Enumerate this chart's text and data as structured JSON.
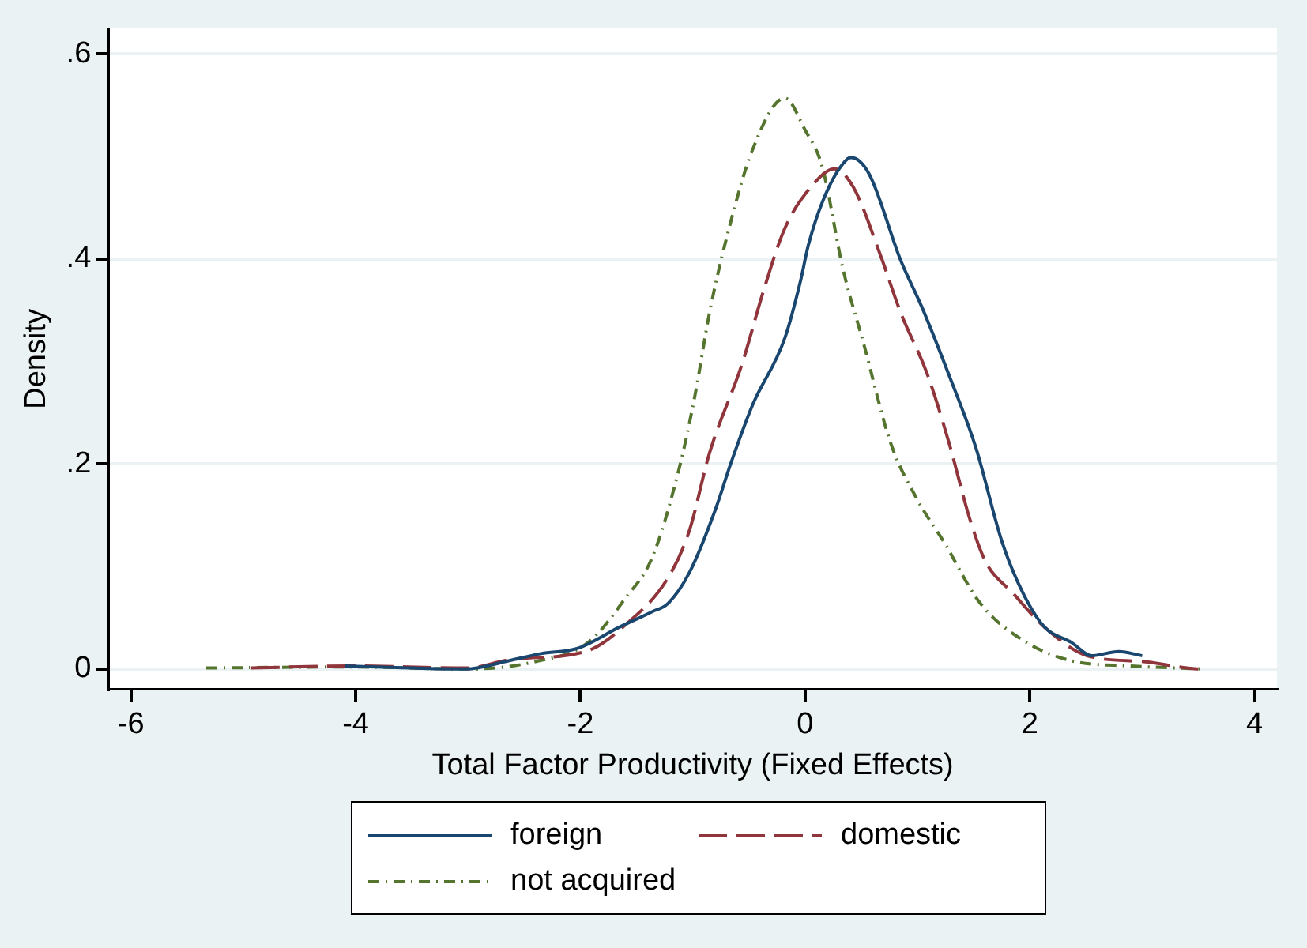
{
  "chart_data": {
    "type": "line",
    "xlabel": "Total Factor Productivity (Fixed Effects)",
    "ylabel": "Density",
    "xlim": [
      -6.2,
      4.2
    ],
    "xticks": [
      -6,
      -4,
      -2,
      0,
      2,
      4
    ],
    "ylim": [
      -0.02,
      0.625
    ],
    "yticks": [
      {
        "value": 0,
        "label": "0"
      },
      {
        "value": 0.2,
        "label": ".2"
      },
      {
        "value": 0.4,
        "label": ".4"
      },
      {
        "value": 0.6,
        "label": ".6"
      }
    ],
    "grid": "y",
    "legend": "bottom",
    "marker": "none",
    "series": [
      {
        "name": "foreign",
        "color": "#1a476f",
        "line_style": "solid",
        "x": [
          -4.1,
          -3.5,
          -3.02,
          -2.64,
          -2.35,
          -2.03,
          -1.65,
          -1.36,
          -1.22,
          -1.03,
          -0.8,
          -0.66,
          -0.47,
          -0.18,
          -0.04,
          0.03,
          0.19,
          0.38,
          0.41,
          0.57,
          0.85,
          1.04,
          1.28,
          1.52,
          1.75,
          1.94,
          2.13,
          2.37,
          2.55,
          2.79,
          3.0
        ],
        "values": [
          0.003,
          0.001,
          0.0,
          0.008,
          0.015,
          0.02,
          0.041,
          0.056,
          0.064,
          0.094,
          0.155,
          0.201,
          0.257,
          0.323,
          0.379,
          0.414,
          0.465,
          0.498,
          0.499,
          0.483,
          0.399,
          0.353,
          0.287,
          0.216,
          0.125,
          0.074,
          0.041,
          0.026,
          0.013,
          0.017,
          0.013
        ]
      },
      {
        "name": "domestic",
        "color": "#90353b",
        "line_style": "dashed",
        "x": [
          -4.93,
          -4.06,
          -3.0,
          -2.64,
          -2.55,
          -1.93,
          -1.6,
          -1.22,
          -1.03,
          -0.85,
          -0.56,
          -0.37,
          -0.18,
          0.05,
          0.26,
          0.43,
          0.67,
          0.85,
          1.09,
          1.28,
          1.47,
          1.61,
          1.85,
          2.13,
          2.51,
          3.03,
          3.4,
          3.5
        ],
        "values": [
          0.001,
          0.003,
          0.001,
          0.009,
          0.01,
          0.018,
          0.043,
          0.089,
          0.135,
          0.211,
          0.298,
          0.369,
          0.43,
          0.47,
          0.488,
          0.47,
          0.404,
          0.348,
          0.287,
          0.221,
          0.145,
          0.104,
          0.074,
          0.041,
          0.013,
          0.007,
          0.001,
          0.0
        ]
      },
      {
        "name": "not acquired",
        "color": "#55752f",
        "line_style": "dotted",
        "x": [
          -5.33,
          -4.06,
          -3.0,
          -2.41,
          -1.93,
          -1.6,
          -1.36,
          -1.12,
          -0.98,
          -0.85,
          -0.7,
          -0.47,
          -0.18,
          0.0,
          0.15,
          0.34,
          0.52,
          0.76,
          1.0,
          1.23,
          1.56,
          1.94,
          2.37,
          2.9,
          3.55
        ],
        "values": [
          0.001,
          0.002,
          0.0,
          0.007,
          0.026,
          0.069,
          0.109,
          0.196,
          0.267,
          0.348,
          0.42,
          0.506,
          0.557,
          0.526,
          0.491,
          0.389,
          0.318,
          0.221,
          0.165,
          0.125,
          0.064,
          0.028,
          0.008,
          0.003,
          0.0
        ]
      }
    ]
  }
}
